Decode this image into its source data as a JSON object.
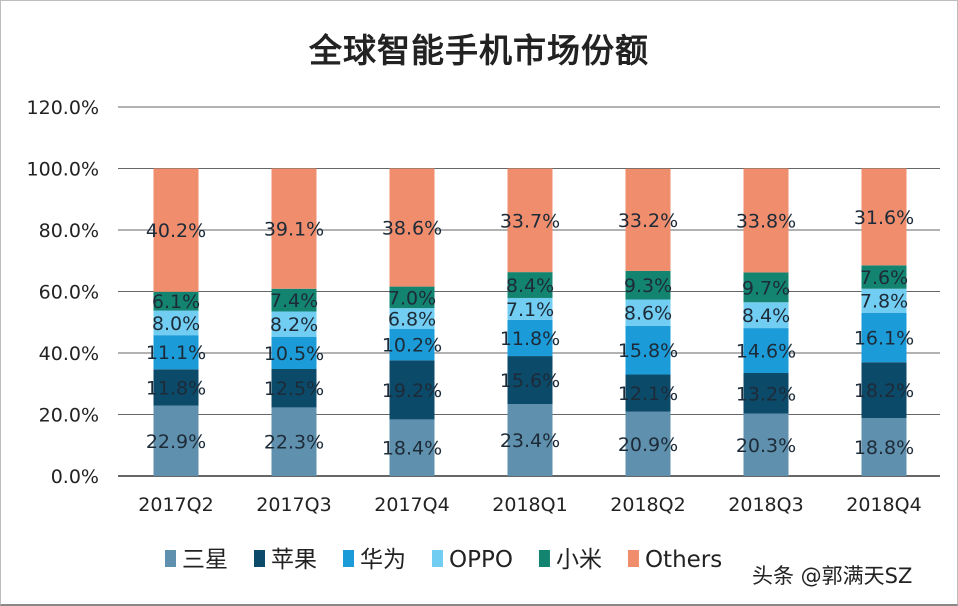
{
  "chart_data": {
    "type": "bar",
    "stacked": true,
    "title": "全球智能手机市场份额",
    "categories": [
      "2017Q2",
      "2017Q3",
      "2017Q4",
      "2018Q1",
      "2018Q2",
      "2018Q3",
      "2018Q4"
    ],
    "ylim": [
      0,
      120
    ],
    "yticks": [
      "0.0%",
      "20.0%",
      "40.0%",
      "60.0%",
      "80.0%",
      "100.0%",
      "120.0%"
    ],
    "grid": true,
    "legend_position": "bottom",
    "series": [
      {
        "name": "三星",
        "color": "#5f90ad",
        "values": [
          22.9,
          22.3,
          18.4,
          23.4,
          20.9,
          20.3,
          18.8
        ]
      },
      {
        "name": "苹果",
        "color": "#0c4a6a",
        "values": [
          11.8,
          12.5,
          19.2,
          15.6,
          12.1,
          13.2,
          18.2
        ]
      },
      {
        "name": "华为",
        "color": "#1b9bd8",
        "values": [
          11.1,
          10.5,
          10.2,
          11.8,
          15.8,
          14.6,
          16.1
        ]
      },
      {
        "name": "OPPO",
        "color": "#72cdf2",
        "values": [
          8.0,
          8.2,
          6.8,
          7.1,
          8.6,
          8.4,
          7.8
        ]
      },
      {
        "name": "小米",
        "color": "#13846f",
        "values": [
          6.1,
          7.4,
          7.0,
          8.4,
          9.3,
          9.7,
          7.6
        ]
      },
      {
        "name": "Others",
        "color": "#ef8d6d",
        "values": [
          40.2,
          39.1,
          38.6,
          33.7,
          33.2,
          33.8,
          31.6
        ]
      }
    ]
  },
  "watermark": "头条 @郭满天SZ"
}
